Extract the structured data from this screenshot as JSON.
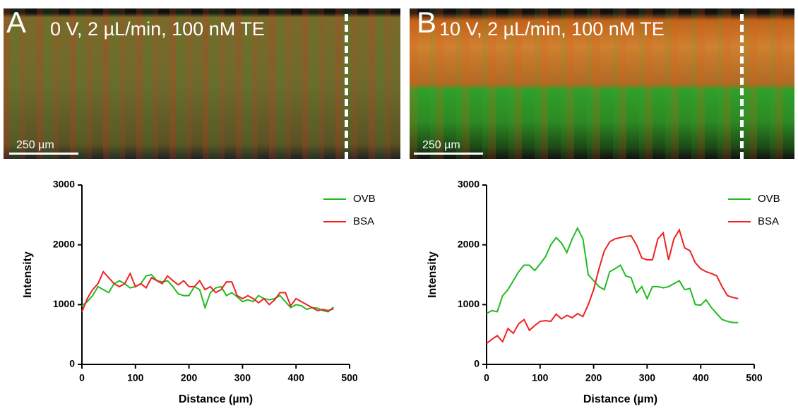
{
  "panels": [
    {
      "label": "A",
      "caption": "0 V, 2 µL/min, 100 nM TE",
      "scale_bar": "250 µm"
    },
    {
      "label": "B",
      "caption": "10 V, 2 µL/min, 100 nM TE",
      "scale_bar": "250 µm"
    }
  ],
  "chart_data": [
    {
      "type": "line",
      "x_label": "Distance (µm)",
      "y_label": "Intensity",
      "xlim": [
        0,
        500
      ],
      "xticks": [
        0,
        100,
        200,
        300,
        400,
        500
      ],
      "ylim": [
        0,
        3000
      ],
      "yticks": [
        0,
        1000,
        2000,
        3000
      ],
      "legend": "upper right",
      "x": [
        0,
        10,
        20,
        30,
        40,
        50,
        60,
        70,
        80,
        90,
        100,
        110,
        120,
        130,
        140,
        150,
        160,
        170,
        180,
        190,
        200,
        210,
        220,
        230,
        240,
        250,
        260,
        270,
        280,
        290,
        300,
        310,
        320,
        330,
        340,
        350,
        360,
        370,
        380,
        390,
        400,
        410,
        420,
        430,
        440,
        450,
        460,
        470
      ],
      "series": [
        {
          "name": "OVB",
          "color": "#22bb22",
          "values": [
            980,
            1050,
            1150,
            1300,
            1250,
            1200,
            1350,
            1400,
            1350,
            1280,
            1300,
            1350,
            1480,
            1500,
            1400,
            1380,
            1400,
            1300,
            1180,
            1150,
            1150,
            1300,
            1250,
            950,
            1200,
            1280,
            1300,
            1150,
            1200,
            1130,
            1050,
            1080,
            1050,
            1150,
            1100,
            1080,
            1100,
            1150,
            1050,
            950,
            1000,
            980,
            920,
            950,
            940,
            900,
            880,
            960
          ]
        },
        {
          "name": "BSA",
          "color": "#ee2222",
          "values": [
            880,
            1100,
            1250,
            1350,
            1550,
            1450,
            1350,
            1300,
            1350,
            1520,
            1300,
            1350,
            1280,
            1450,
            1400,
            1350,
            1480,
            1400,
            1330,
            1400,
            1300,
            1300,
            1400,
            1250,
            1300,
            1200,
            1250,
            1380,
            1380,
            1150,
            1100,
            1150,
            1100,
            1030,
            1100,
            1000,
            1080,
            1200,
            1200,
            980,
            1100,
            1050,
            1000,
            950,
            900,
            920,
            900,
            930
          ]
        }
      ]
    },
    {
      "type": "line",
      "x_label": "Distance (µm)",
      "y_label": "Intensity",
      "xlim": [
        0,
        500
      ],
      "xticks": [
        0,
        100,
        200,
        300,
        400,
        500
      ],
      "ylim": [
        0,
        3000
      ],
      "yticks": [
        0,
        1000,
        2000,
        3000
      ],
      "legend": "upper right",
      "x": [
        0,
        10,
        20,
        30,
        40,
        50,
        60,
        70,
        80,
        90,
        100,
        110,
        120,
        130,
        140,
        150,
        160,
        170,
        180,
        190,
        200,
        210,
        220,
        230,
        240,
        250,
        260,
        270,
        280,
        290,
        300,
        310,
        320,
        330,
        340,
        350,
        360,
        370,
        380,
        390,
        400,
        410,
        420,
        430,
        440,
        450,
        460,
        470
      ],
      "series": [
        {
          "name": "OVB",
          "color": "#22bb22",
          "values": [
            850,
            900,
            880,
            1150,
            1250,
            1400,
            1550,
            1660,
            1660,
            1570,
            1680,
            1800,
            2000,
            2120,
            2030,
            1870,
            2100,
            2280,
            2100,
            1500,
            1400,
            1300,
            1250,
            1550,
            1600,
            1660,
            1480,
            1450,
            1200,
            1300,
            1100,
            1300,
            1300,
            1280,
            1300,
            1350,
            1400,
            1250,
            1270,
            1000,
            990,
            1080,
            950,
            850,
            750,
            720,
            700,
            700
          ]
        },
        {
          "name": "BSA",
          "color": "#ee2222",
          "values": [
            350,
            420,
            480,
            380,
            600,
            520,
            680,
            750,
            570,
            650,
            720,
            730,
            720,
            840,
            760,
            820,
            780,
            850,
            800,
            1000,
            1250,
            1600,
            1900,
            2050,
            2100,
            2120,
            2140,
            2150,
            2000,
            1780,
            1750,
            1750,
            2100,
            2200,
            1750,
            2100,
            2250,
            1950,
            1900,
            1700,
            1600,
            1550,
            1520,
            1480,
            1300,
            1150,
            1120,
            1100
          ]
        }
      ]
    }
  ]
}
